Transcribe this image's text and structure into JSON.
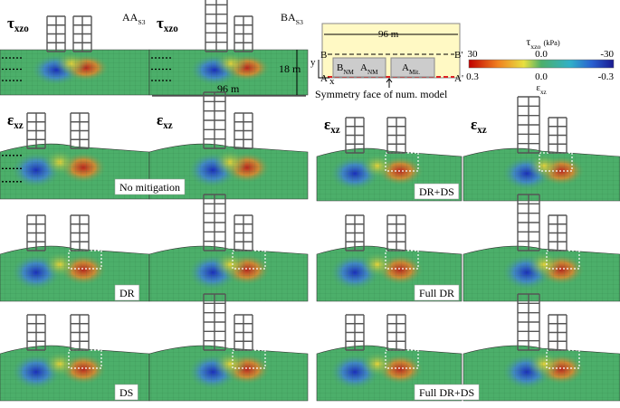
{
  "panels": [
    {
      "label": {
        "symbol": "τ",
        "sub": "xzo"
      },
      "case": {
        "main": "AA",
        "sub": "S3"
      }
    },
    {
      "label": {
        "symbol": "τ",
        "sub": "xzo"
      },
      "case": {
        "main": "BA",
        "sub": "S3"
      },
      "depth": "18 m",
      "width": "96 m"
    },
    {
      "label": {
        "symbol": "ε",
        "sub": "xz"
      }
    },
    {
      "label": {
        "symbol": "ε",
        "sub": "xz"
      },
      "caption": "No mitigation"
    },
    {
      "label": {
        "symbol": "ε",
        "sub": "xz"
      }
    },
    {
      "label": {
        "symbol": "ε",
        "sub": "xz"
      },
      "caption": "DR+DS"
    },
    {
      "caption": "DR"
    },
    {},
    {},
    {
      "caption": "Full DR"
    },
    {
      "caption": "DS"
    },
    {},
    {},
    {
      "caption": "Full DR+DS"
    }
  ],
  "schematic": {
    "width": "96 m",
    "b": "B",
    "b_prime": "B'",
    "a": "A",
    "a_prime": "A'",
    "axis_y": "y",
    "axis_x": "x",
    "blocks": [
      {
        "main": "B",
        "sub": "NM"
      },
      {
        "main": "A",
        "sub": "NM"
      },
      {
        "main": "A",
        "sub": "Mit."
      }
    ],
    "caption": "Symmetry face of num. model"
  },
  "colorbar": {
    "title": {
      "symbol": "τ",
      "sub": "xzo",
      "unit": "(kPa)"
    },
    "tau_ticks": [
      "30",
      "0.0",
      "-30"
    ],
    "strain_label": {
      "symbol": "ε",
      "sub": "xz"
    },
    "strain_ticks": [
      "0.3",
      "0.0",
      "-0.3"
    ]
  }
}
